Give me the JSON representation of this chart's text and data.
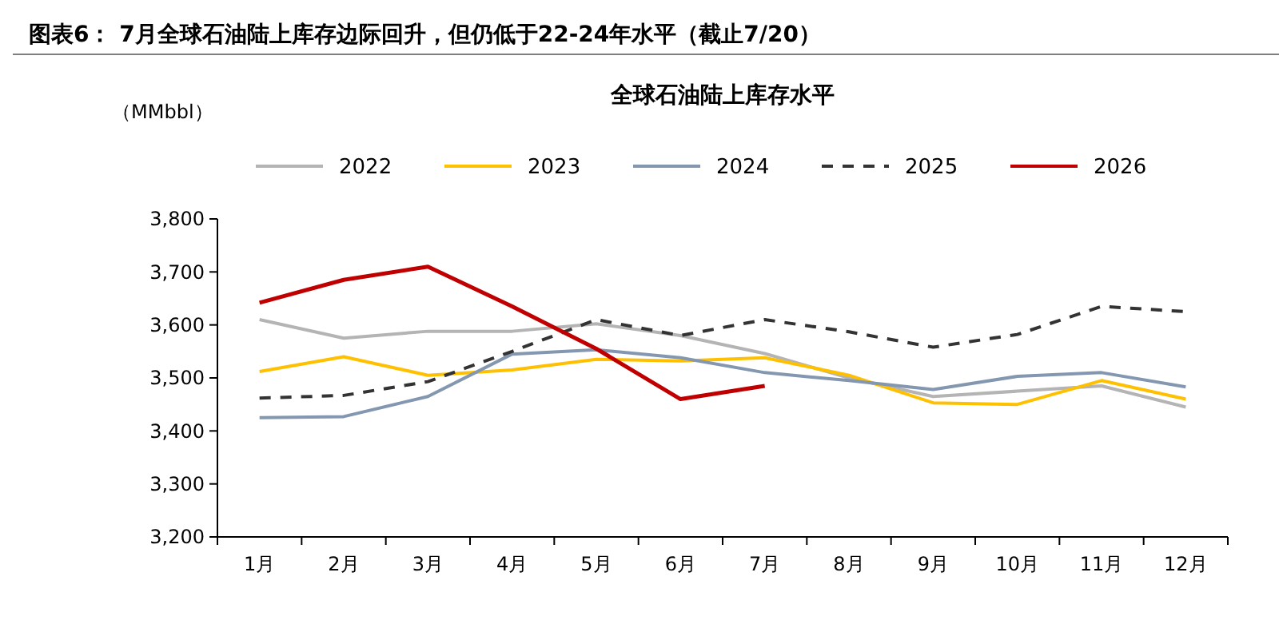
{
  "chart_data": {
    "type": "line",
    "title": "图表6：  7月全球石油陆上库存边际回升，但仍低于22-24年水平（截止7/20）",
    "subtitle": "全球石油陆上库存水平",
    "ylabel": "（MMbbl）",
    "categories": [
      "1月",
      "2月",
      "3月",
      "4月",
      "5月",
      "6月",
      "7月",
      "8月",
      "9月",
      "10月",
      "11月",
      "12月"
    ],
    "ylim": [
      3200,
      3800
    ],
    "yticks": [
      {
        "value": 3200,
        "label": "3,200"
      },
      {
        "value": 3300,
        "label": "3,300"
      },
      {
        "value": 3400,
        "label": "3,400"
      },
      {
        "value": 3500,
        "label": "3,500"
      },
      {
        "value": 3600,
        "label": "3,600"
      },
      {
        "value": 3700,
        "label": "3,700"
      },
      {
        "value": 3800,
        "label": "3,800"
      }
    ],
    "legend": "top",
    "grid": false,
    "marker": "none",
    "series": [
      {
        "name": "2022",
        "color": "#b4b4b4",
        "values": [
          3610,
          3575,
          3588,
          3588,
          3602,
          3580,
          3546,
          3500,
          3465,
          3475,
          3485,
          3445
        ]
      },
      {
        "name": "2023",
        "color": "#ffc000",
        "values": [
          3512,
          3540,
          3505,
          3515,
          3535,
          3532,
          3538,
          3505,
          3453,
          3450,
          3495,
          3460
        ]
      },
      {
        "name": "2024",
        "color": "#8497b0",
        "values": [
          3425,
          3427,
          3465,
          3545,
          3553,
          3538,
          3510,
          3495,
          3478,
          3503,
          3510,
          3483
        ]
      },
      {
        "name": "2025",
        "color": "#333333",
        "line_style": "dashed",
        "values": [
          3462,
          3467,
          3493,
          3550,
          3610,
          3580,
          3610,
          3587,
          3558,
          3582,
          3635,
          3625
        ]
      },
      {
        "name": "2026",
        "color": "#c00000",
        "values": [
          3642,
          3685,
          3710,
          3635,
          3555,
          3460,
          3485,
          null,
          null,
          null,
          null,
          null
        ]
      }
    ]
  }
}
